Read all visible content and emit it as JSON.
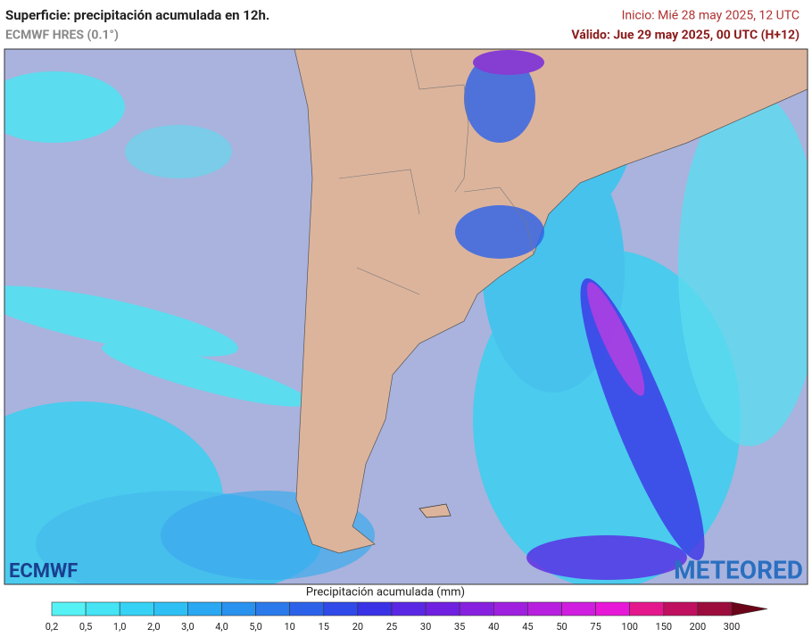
{
  "header": {
    "title": "Superficie: precipitación acumulada en 12h.",
    "model": "ECMWF HRES (0.1°)",
    "init": "Inicio: Mié 28 may 2025, 12 UTC",
    "valid": "Válido: Jue 29 may 2025, 00 UTC (H+12)"
  },
  "logos": {
    "left": "ECMWF",
    "right": "METEORED"
  },
  "legend": {
    "title": "Precipitación acumulada (mm)",
    "labels": [
      "0,2",
      "0,5",
      "1,0",
      "2,0",
      "3,0",
      "4,0",
      "5,0",
      "10",
      "15",
      "20",
      "25",
      "30",
      "35",
      "40",
      "45",
      "50",
      "75",
      "100",
      "150",
      "200",
      "300"
    ],
    "colors": [
      "#55f2f5",
      "#44e4f5",
      "#36d2f5",
      "#2ec0f5",
      "#2aa8f2",
      "#2992ef",
      "#2a7aec",
      "#2c62ea",
      "#2f4ae8",
      "#3a32e6",
      "#5a28e4",
      "#7020e0",
      "#8820e0",
      "#a020e0",
      "#b820e0",
      "#d01ee0",
      "#e818d8",
      "#e4188c",
      "#c01060",
      "#9c0c3c",
      "#6a0418"
    ]
  }
}
